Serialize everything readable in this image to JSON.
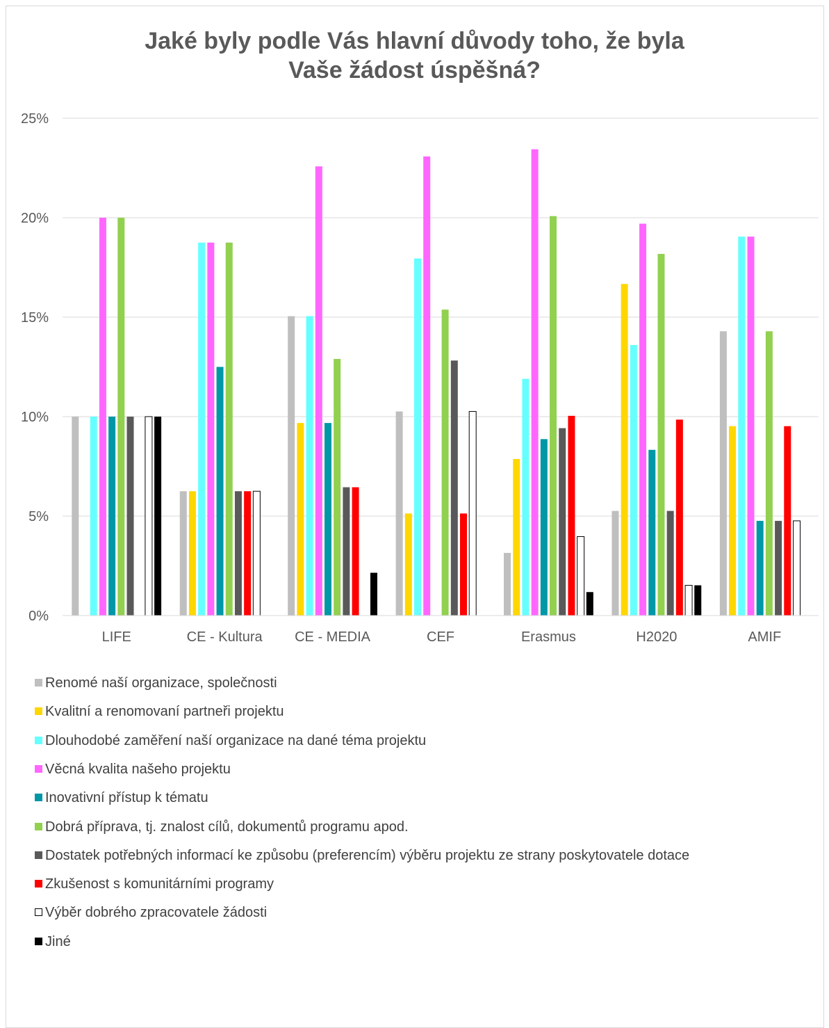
{
  "chart_data": {
    "type": "bar",
    "title": [
      "Jaké byly podle Vás hlavní důvody toho, že byla",
      "Vaše žádost úspěšná?"
    ],
    "categories": [
      "LIFE",
      "CE - Kultura",
      "CE - MEDIA",
      "CEF",
      "Erasmus",
      "H2020",
      "AMIF"
    ],
    "ylim": [
      0,
      25
    ],
    "yticks": [
      "0%",
      "5%",
      "10%",
      "15%",
      "20%",
      "25%"
    ],
    "ytick_values": [
      0,
      5,
      10,
      15,
      20,
      25
    ],
    "grid": true,
    "legend_position": "bottom",
    "series": [
      {
        "name": "Renomé naší organizace, společnosti",
        "color": "#bfbfbf",
        "values": [
          10,
          6.25,
          15.05,
          10.26,
          3.15,
          5.26,
          14.29
        ]
      },
      {
        "name": "Kvalitní a renomovaní partneři projektu",
        "color": "#ffd700",
        "values": [
          0,
          6.25,
          9.68,
          5.13,
          7.87,
          16.67,
          9.52
        ]
      },
      {
        "name": "Dlouhodobé zaměření naší organizace na dané téma projektu",
        "color": "#66ffff",
        "values": [
          10,
          18.75,
          15.05,
          17.95,
          11.9,
          13.6,
          19.05
        ]
      },
      {
        "name": "Věcná kvalita našeho projektu",
        "color": "#ff66ff",
        "values": [
          20,
          18.75,
          22.58,
          23.08,
          23.44,
          19.7,
          19.05
        ]
      },
      {
        "name": "Inovativní přístup k tématu",
        "color": "#0097a7",
        "values": [
          10,
          12.5,
          9.68,
          0,
          8.87,
          8.33,
          4.76
        ]
      },
      {
        "name": "Dobrá příprava, tj. znalost cílů, dokumentů programu apod.",
        "color": "#92d050",
        "values": [
          20,
          18.75,
          12.9,
          15.38,
          20.08,
          18.18,
          14.29
        ]
      },
      {
        "name": "Dostatek potřebných informací ke způsobu (preferencím) výběru projektu ze strany poskytovatele dotace",
        "color": "#595959",
        "values": [
          10,
          6.25,
          6.45,
          12.82,
          9.42,
          5.26,
          4.76
        ]
      },
      {
        "name": "Zkušenost s komunitárními programy",
        "color": "#ff0000",
        "values": [
          0,
          6.25,
          6.45,
          5.13,
          10.04,
          9.85,
          9.52
        ]
      },
      {
        "name": "Výběr dobrého zpracovatele žádosti",
        "color": "#ffffff",
        "outline": "#000000",
        "values": [
          10,
          6.25,
          0,
          10.26,
          3.97,
          1.52,
          4.76
        ]
      },
      {
        "name": "Jiné",
        "color": "#000000",
        "values": [
          10,
          0,
          2.15,
          0,
          1.18,
          1.52,
          0
        ]
      }
    ]
  }
}
